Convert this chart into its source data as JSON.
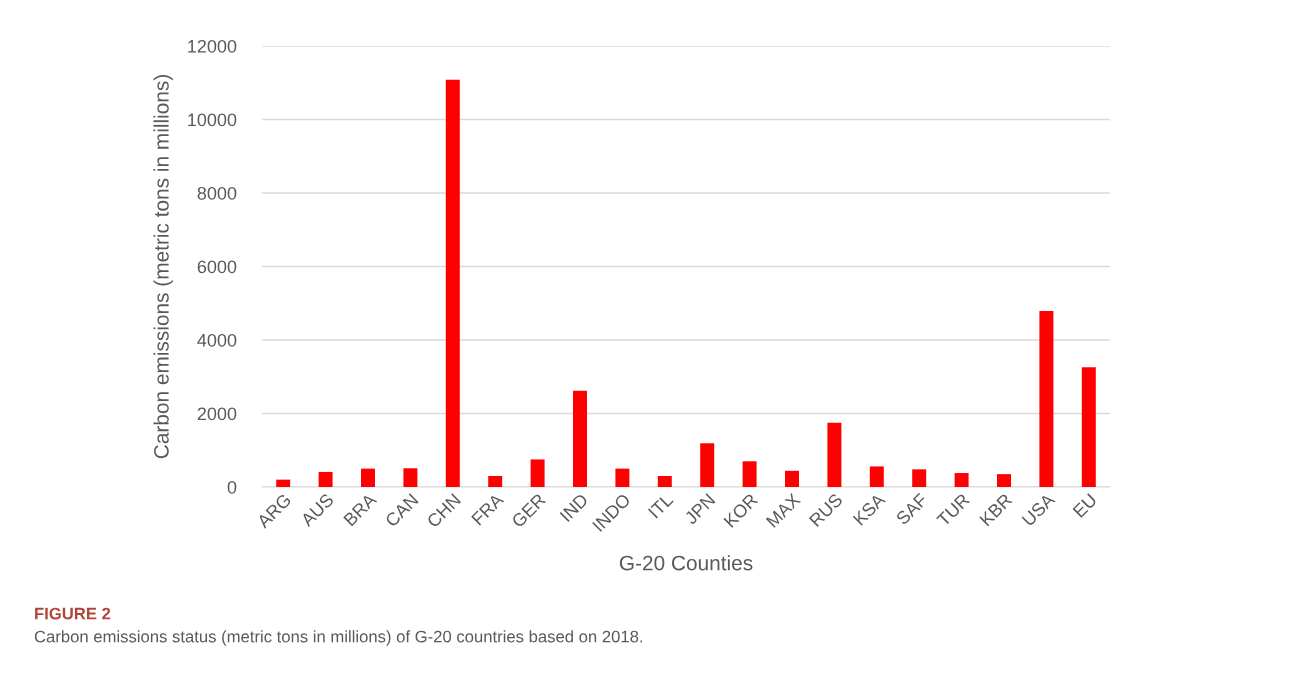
{
  "chart_data": {
    "type": "bar",
    "categories": [
      "ARG",
      "AUS",
      "BRA",
      "CAN",
      "CHN",
      "FRA",
      "GER",
      "IND",
      "INDO",
      "ITL",
      "JPN",
      "KOR",
      "MAX",
      "RUS",
      "KSA",
      "SAF",
      "TUR",
      "KBR",
      "USA",
      "EU"
    ],
    "values": [
      200,
      410,
      500,
      510,
      11080,
      300,
      750,
      2620,
      500,
      300,
      1190,
      700,
      440,
      1750,
      560,
      480,
      380,
      350,
      4790,
      3260
    ],
    "color": "#ff0000",
    "xlabel": "G-20 Counties",
    "ylabel": "Carbon emissions (metric tons in millions)",
    "ylim": [
      0,
      12000
    ],
    "yticks": [
      0,
      2000,
      4000,
      6000,
      8000,
      10000,
      12000
    ],
    "grid": "y",
    "annotations": [
      "FIGURE 2",
      "Carbon emissions status (metric tons in millions) of G-20 countries based on 2018."
    ]
  }
}
